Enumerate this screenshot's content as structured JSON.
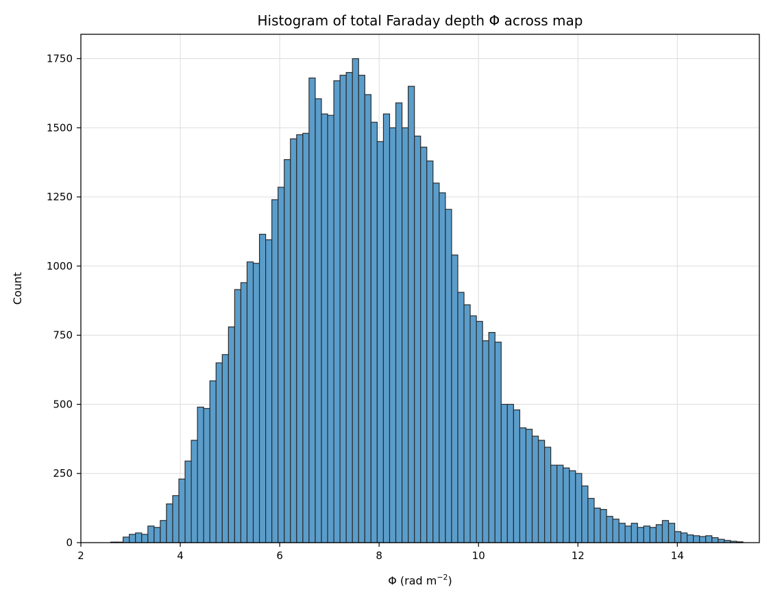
{
  "chart_data": {
    "type": "bar",
    "title": "Histogram of total Faraday depth Φ across map",
    "xlabel_main": "Φ (rad m",
    "xlabel_exp": "−2",
    "xlabel_close": ")",
    "ylabel": "Count",
    "xlim": [
      2.0,
      15.65
    ],
    "ylim": [
      0,
      1838
    ],
    "xticks": [
      2,
      4,
      6,
      8,
      10,
      12,
      14
    ],
    "yticks": [
      0,
      250,
      500,
      750,
      1000,
      1250,
      1500,
      1750
    ],
    "grid": true,
    "bin_start": 2.6,
    "bin_width": 0.1247,
    "values": [
      2,
      2,
      20,
      30,
      35,
      30,
      60,
      55,
      80,
      140,
      170,
      230,
      295,
      370,
      490,
      485,
      585,
      650,
      680,
      780,
      915,
      940,
      1015,
      1010,
      1115,
      1095,
      1240,
      1285,
      1385,
      1460,
      1475,
      1480,
      1680,
      1605,
      1550,
      1545,
      1670,
      1690,
      1700,
      1750,
      1690,
      1620,
      1520,
      1450,
      1550,
      1500,
      1590,
      1500,
      1650,
      1470,
      1430,
      1380,
      1300,
      1265,
      1205,
      1040,
      905,
      860,
      820,
      800,
      730,
      760,
      725,
      500,
      500,
      480,
      415,
      410,
      385,
      370,
      345,
      280,
      280,
      270,
      260,
      250,
      205,
      160,
      125,
      120,
      95,
      85,
      70,
      60,
      70,
      55,
      60,
      55,
      65,
      80,
      70,
      40,
      35,
      28,
      25,
      22,
      25,
      18,
      12,
      8,
      5,
      3
    ]
  },
  "colors": {
    "bar_fill": "#5a9dcb",
    "bar_edge": "#2a2a2a",
    "grid": "#dcdcdc",
    "axis": "#000000"
  }
}
